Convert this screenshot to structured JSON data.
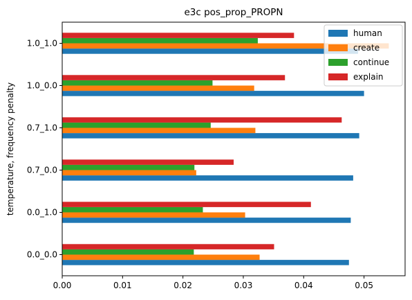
{
  "chart_data": {
    "type": "bar",
    "orientation": "horizontal",
    "title": "e3c pos_prop_PROPN",
    "xlabel": "",
    "ylabel": "temperature, frequency penalty",
    "categories": [
      "0.0_0.0",
      "0.0_1.0",
      "0.7_0.0",
      "0.7_1.0",
      "1.0_0.0",
      "1.0_1.0"
    ],
    "series": [
      {
        "name": "human",
        "color": "#1f77b4",
        "values": [
          0.0475,
          0.0478,
          0.0482,
          0.0492,
          0.05,
          0.049
        ]
      },
      {
        "name": "create",
        "color": "#ff7f0e",
        "values": [
          0.0327,
          0.0303,
          0.0222,
          0.032,
          0.0318,
          0.0541
        ]
      },
      {
        "name": "continue",
        "color": "#2ca02c",
        "values": [
          0.0218,
          0.0233,
          0.0219,
          0.0246,
          0.0249,
          0.0324
        ]
      },
      {
        "name": "explain",
        "color": "#d62728",
        "values": [
          0.0351,
          0.0412,
          0.0284,
          0.0463,
          0.0369,
          0.0384
        ]
      }
    ],
    "xlim": [
      0,
      0.0568
    ],
    "xticks": [
      "0.00",
      "0.01",
      "0.02",
      "0.03",
      "0.04",
      "0.05"
    ],
    "grid": false,
    "legend": "top-right"
  }
}
